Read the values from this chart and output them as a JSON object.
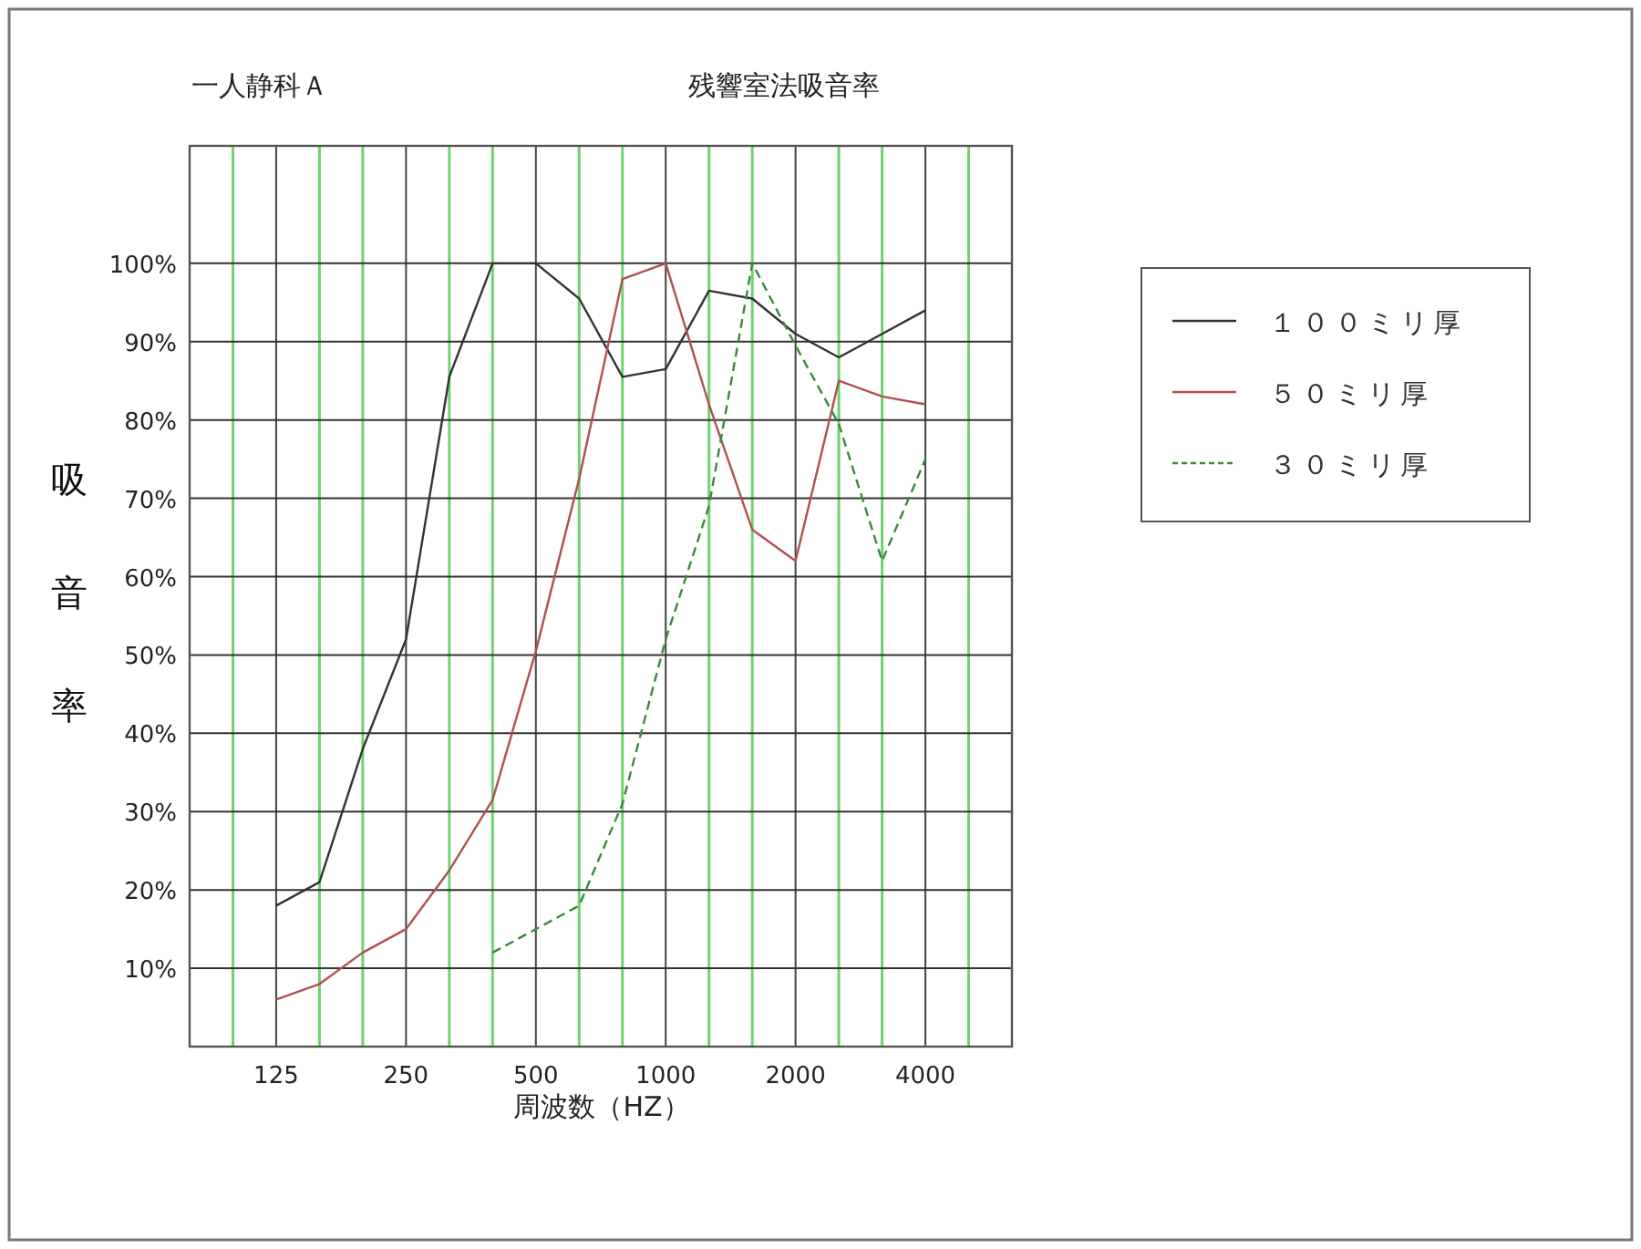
{
  "chart_data": {
    "type": "line",
    "title": "残響室法吸音率",
    "subtitle": "一人静科Ａ",
    "xlabel": "周波数（HZ）",
    "ylabel": "吸音率",
    "categories": [
      null,
      "125",
      null,
      null,
      "250",
      null,
      null,
      "500",
      null,
      null,
      "1000",
      null,
      null,
      "2000",
      null,
      null,
      "4000",
      null
    ],
    "series": [
      {
        "name": "１００ミリ厚",
        "color": "#333333",
        "line_style": "solid",
        "values": [
          null,
          18,
          21,
          38,
          52,
          85.5,
          100,
          100,
          95.5,
          85.5,
          86.5,
          96.5,
          95.5,
          91,
          88,
          91,
          94,
          null
        ]
      },
      {
        "name": "５０ミリ厚",
        "color": "#b05050",
        "line_style": "solid",
        "values": [
          null,
          6,
          8,
          12,
          15,
          22.5,
          31.5,
          50.5,
          72.5,
          98,
          100,
          82,
          66,
          62,
          85,
          83,
          82,
          null
        ]
      },
      {
        "name": "３０ミリ厚",
        "color": "#3a8a3a",
        "line_style": "dashed",
        "values": [
          null,
          null,
          null,
          null,
          null,
          null,
          12,
          15,
          18,
          31,
          52,
          69,
          100,
          89.5,
          79.5,
          62,
          75,
          null
        ]
      }
    ],
    "ylim": [
      0,
      115
    ],
    "yticks": [
      {
        "value": 10,
        "label": "10%"
      },
      {
        "value": 20,
        "label": "20%"
      },
      {
        "value": 30,
        "label": "30%"
      },
      {
        "value": 40,
        "label": "40%"
      },
      {
        "value": 50,
        "label": "50%"
      },
      {
        "value": 60,
        "label": "60%"
      },
      {
        "value": 70,
        "label": "70%"
      },
      {
        "value": 80,
        "label": "80%"
      },
      {
        "value": 90,
        "label": "90%"
      },
      {
        "value": 100,
        "label": "100%"
      }
    ],
    "grid": true,
    "legend": "right"
  }
}
